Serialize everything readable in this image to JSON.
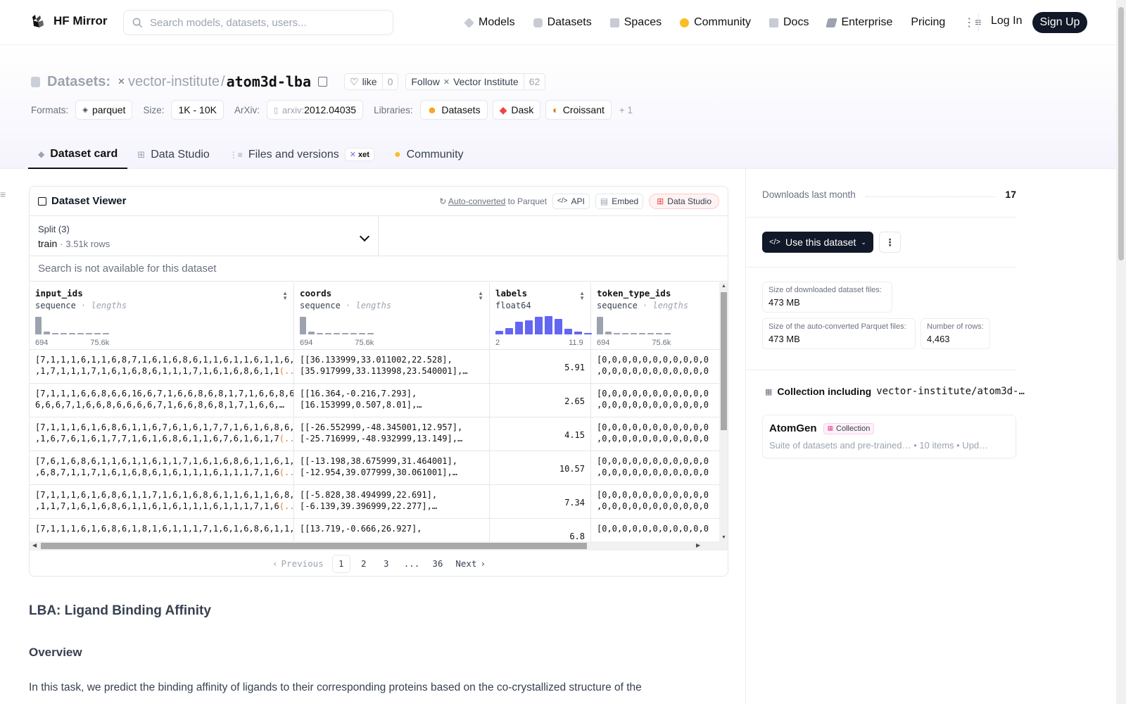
{
  "nav": {
    "brand": "HF Mirror",
    "search_placeholder": "Search models, datasets, users...",
    "links": [
      "Models",
      "Datasets",
      "Spaces",
      "Community",
      "Docs",
      "Enterprise",
      "Pricing"
    ],
    "login": "Log In",
    "signup": "Sign Up"
  },
  "repo": {
    "type_label": "Datasets:",
    "org": "vector-institute",
    "name": "atom3d-lba",
    "like_label": "like",
    "like_count": "0",
    "follow_label": "Follow",
    "follow_org": "Vector Institute",
    "follow_count": "62"
  },
  "meta": {
    "formats_label": "Formats:",
    "format": "parquet",
    "size_label": "Size:",
    "size": "1K - 10K",
    "arxiv_label": "ArXiv:",
    "arxiv_prefix": "arxiv:",
    "arxiv_id": "2012.04035",
    "libraries_label": "Libraries:",
    "libraries": [
      "Datasets",
      "Dask",
      "Croissant"
    ],
    "more": "+ 1"
  },
  "tabs": [
    "Dataset card",
    "Data Studio",
    "Files and versions",
    "Community"
  ],
  "xet_badge": "xet",
  "viewer": {
    "title": "Dataset Viewer",
    "auto_converted": "Auto-converted",
    "to_parquet": "to Parquet",
    "api": "API",
    "embed": "Embed",
    "data_studio": "Data Studio",
    "split_label": "Split (3)",
    "split_name": "train",
    "split_rows": "3.51k rows",
    "search_note": "Search is not available for this dataset",
    "columns": [
      {
        "name": "input_ids",
        "type": "sequence",
        "sub": "lengths",
        "min": "694",
        "max": "75.6k",
        "hist": [
          0.95,
          0.15,
          0.05,
          0.05,
          0.05,
          0.05,
          0.05,
          0.05,
          0.05
        ]
      },
      {
        "name": "coords",
        "type": "sequence",
        "sub": "lengths",
        "min": "694",
        "max": "75.6k",
        "hist": [
          0.95,
          0.15,
          0.05,
          0.05,
          0.05,
          0.05,
          0.05,
          0.05,
          0.05
        ]
      },
      {
        "name": "labels",
        "type": "float64",
        "sub": "",
        "min": "2",
        "max": "11.9",
        "hist": [
          0.2,
          0.35,
          0.7,
          0.75,
          0.95,
          1.0,
          0.85,
          0.3,
          0.15,
          0.08
        ]
      },
      {
        "name": "token_type_ids",
        "type": "sequence",
        "sub": "lengths",
        "min": "694",
        "max": "75.6k",
        "hist": [
          0.95,
          0.15,
          0.05,
          0.05,
          0.05,
          0.05,
          0.05,
          0.05,
          0.05
        ]
      }
    ],
    "rows": [
      {
        "input_ids": [
          "[7,1,1,1,6,1,1,6,8,7,1,6,1,6,8,6,1,1,6,1,1,6,1,1,6,1",
          ",1,7,1,1,1,7,1,6,1,6,8,6,1,1,1,7,1,6,1,6,8,6,1,1"
        ],
        "coords": [
          "[[36.133999,33.011002,22.528],",
          "[35.917999,33.113998,23.540001],…"
        ],
        "labels": "5.91",
        "token": [
          "[0,0,0,0,0,0,0,0,0,0,0",
          ",0,0,0,0,0,0,0,0,0,0,0"
        ]
      },
      {
        "input_ids": [
          "[7,1,1,1,6,6,8,6,6,16,6,7,1,6,6,8,6,8,1,7,1,6,6,8,6,",
          "6,6,6,7,1,6,6,8,6,6,6,6,7,1,6,6,8,6,8,1,7,1,6,6,…"
        ],
        "coords": [
          "[[16.364,-0.216,7.293],",
          "[16.153999,0.507,8.01],…"
        ],
        "labels": "2.65",
        "token": [
          "[0,0,0,0,0,0,0,0,0,0,0",
          ",0,0,0,0,0,0,0,0,0,0,0"
        ]
      },
      {
        "input_ids": [
          "[7,1,1,1,6,1,6,8,6,1,1,6,7,6,1,6,1,7,7,1,6,1,6,8,6,1",
          ",1,6,7,6,1,6,1,7,7,1,6,1,6,8,6,1,1,6,7,6,1,6,1,7"
        ],
        "coords": [
          "[[-26.552999,-48.345001,12.957],",
          "[-25.716999,-48.932999,13.149],…"
        ],
        "labels": "4.15",
        "token": [
          "[0,0,0,0,0,0,0,0,0,0,0",
          ",0,0,0,0,0,0,0,0,0,0,0"
        ]
      },
      {
        "input_ids": [
          "[7,6,1,6,8,6,1,1,6,1,1,6,1,1,7,1,6,1,6,8,6,1,1,6,1,1",
          ",6,8,7,1,1,7,1,6,1,6,8,6,1,6,1,1,1,6,1,1,1,7,1,6"
        ],
        "coords": [
          "[[-13.198,38.675999,31.464001],",
          "[-12.954,39.077999,30.061001],…"
        ],
        "labels": "10.57",
        "token": [
          "[0,0,0,0,0,0,0,0,0,0,0",
          ",0,0,0,0,0,0,0,0,0,0,0"
        ]
      },
      {
        "input_ids": [
          "[7,1,1,1,6,1,6,8,6,1,1,7,1,6,1,6,8,6,1,1,6,1,1,6,8,7",
          ",1,1,7,1,6,1,6,8,6,1,1,6,1,6,1,1,1,6,1,1,1,7,1,6"
        ],
        "coords": [
          "[[-5.828,38.494999,22.691],",
          "[-6.139,39.396999,22.277],…"
        ],
        "labels": "7.34",
        "token": [
          "[0,0,0,0,0,0,0,0,0,0,0",
          ",0,0,0,0,0,0,0,0,0,0,0"
        ]
      },
      {
        "input_ids": [
          "[7,1,1,1,6,1,6,8,6,1,8,1,6,1,1,1,7,1,6,1,6,8,6,1,1,6",
          ""
        ],
        "coords": [
          "[[13.719,-0.666,26.927],",
          ""
        ],
        "labels": "6.8",
        "token": [
          "[0,0,0,0,0,0,0,0,0,0,0",
          ""
        ]
      }
    ],
    "ellipsis": "(...)",
    "pager": {
      "prev": "Previous",
      "pages": [
        "1",
        "2",
        "3",
        "...",
        "36"
      ],
      "next": "Next"
    }
  },
  "card": {
    "h1": "LBA: Ligand Binding Affinity",
    "h2": "Overview",
    "para": "In this task, we predict the binding affinity of ligands to their corresponding proteins based on the co-crystallized structure of the"
  },
  "sidebar": {
    "downloads_label": "Downloads last month",
    "downloads": "17",
    "use_button": "Use this dataset",
    "stats": [
      {
        "label": "Size of downloaded dataset files:",
        "value": "473 MB"
      },
      {
        "label": "Size of the auto-converted Parquet files:",
        "value": "473 MB"
      },
      {
        "label": "Number of rows:",
        "value": "4,463"
      }
    ],
    "collection_prefix": "Collection including",
    "collection_repo": "vector-institute/atom3d-…",
    "collection_name": "AtomGen",
    "collection_badge": "Collection",
    "collection_meta": "Suite of datasets and pre-trained…  •  10 items  •  Upd…"
  },
  "colors": {
    "accent_dark": "#111827",
    "hist_gray": "#9ca3af",
    "hist_blue": "#6366f1",
    "ellipsis_orange": "#f97316"
  }
}
